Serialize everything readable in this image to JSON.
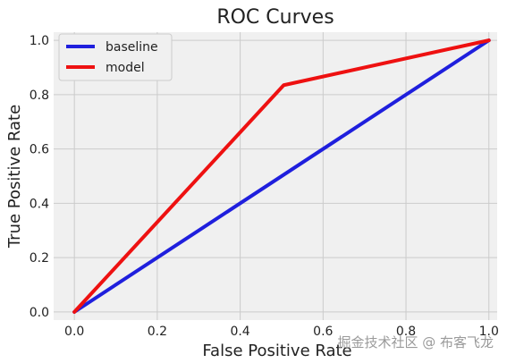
{
  "chart_data": {
    "type": "line",
    "title": "ROC Curves",
    "xlabel": "False Positive Rate",
    "ylabel": "True Positive Rate",
    "xlim": [
      -0.05,
      1.02
    ],
    "ylim": [
      -0.03,
      1.03
    ],
    "xticks": [
      0.0,
      0.2,
      0.4,
      0.6,
      0.8,
      1.0
    ],
    "yticks": [
      0.0,
      0.2,
      0.4,
      0.6,
      0.8,
      1.0
    ],
    "tick_labels_x": [
      "0.0",
      "0.2",
      "0.4",
      "0.6",
      "0.8",
      "1.0"
    ],
    "tick_labels_y": [
      "0.0",
      "0.2",
      "0.4",
      "0.6",
      "0.8",
      "1.0"
    ],
    "grid": true,
    "legend_position": "top-left",
    "series": [
      {
        "name": "baseline",
        "color": "#1f1fdd",
        "x": [
          0.0,
          1.0
        ],
        "y": [
          0.0,
          1.0
        ]
      },
      {
        "name": "model",
        "color": "#ee1111",
        "x": [
          0.0,
          0.505,
          1.0
        ],
        "y": [
          0.0,
          0.835,
          1.0
        ]
      }
    ]
  },
  "watermark": "掘金技术社区 @ 布客飞龙"
}
